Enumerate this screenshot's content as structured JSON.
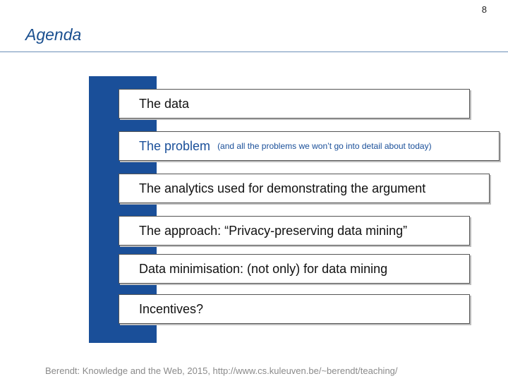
{
  "page_number": "8",
  "title": "Agenda",
  "items": [
    {
      "main": "The data",
      "note": ""
    },
    {
      "main": "The problem",
      "note": "(and all the problems we won’t go into detail about today)"
    },
    {
      "main": "The analytics used for demonstrating the argument",
      "note": ""
    },
    {
      "main": "The approach: “Privacy-preserving data mining”",
      "note": ""
    },
    {
      "main": "Data minimisation: (not only) for data mining",
      "note": ""
    },
    {
      "main": "Incentives?",
      "note": ""
    }
  ],
  "footer": "Berendt: Knowledge and the Web, 2015, http://www.cs.kuleuven.be/~berendt/teaching/",
  "colors": {
    "accent": "#1a4f99",
    "title": "#1a4f8f",
    "footer": "#8a8a8a"
  }
}
